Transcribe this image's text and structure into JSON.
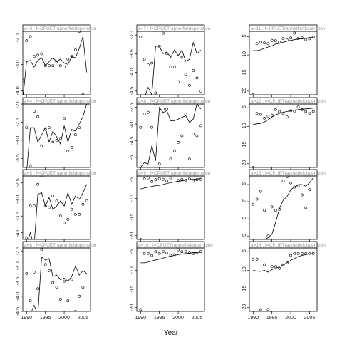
{
  "figure": {
    "xlabel": "Year"
  },
  "x_ticks": [
    1990,
    1995,
    2000,
    2005
  ],
  "chart_data": [
    {
      "type": "line",
      "panel": "a=3",
      "label": "a=3 : f=CPUETrapnetfieldoperation",
      "xlim": [
        1989,
        2007
      ],
      "ylim": [
        -4.15,
        -1.75
      ],
      "y_ticks": [
        -2.0,
        -3.0,
        -4.0
      ],
      "x": [
        1989,
        1990,
        1991,
        1992,
        1993,
        1994,
        1995,
        1996,
        1997,
        1998,
        1999,
        2000,
        2001,
        2002,
        2003,
        2004,
        2005,
        2006
      ],
      "fitted": [
        -4.3,
        -2.9,
        -2.85,
        -3.1,
        -2.85,
        -2.75,
        -3.05,
        -2.9,
        -2.75,
        -2.9,
        -2.8,
        -2.95,
        -3.0,
        -2.7,
        -2.75,
        -2.4,
        -1.95,
        -3.3
      ],
      "observed": [
        -3.6,
        -2.1,
        -1.95,
        -2.7,
        -2.65,
        -2.6,
        -3.05,
        -3.05,
        -3.05,
        -2.9,
        -3.05,
        -3.1,
        -2.8,
        -2.7,
        -2.45,
        -1.75,
        -4.15,
        null
      ]
    },
    {
      "type": "line",
      "panel": "a=7",
      "label": "a=7 : f=CPUETrapnetfieldoperation",
      "xlim": [
        1989,
        2007
      ],
      "ylim": [
        -4.6,
        -2.9
      ],
      "y_ticks": [
        -3.0,
        -3.5,
        -4.0,
        -4.5
      ],
      "x": [
        1990,
        1991,
        1992,
        1993,
        1994,
        1995,
        1996,
        1997,
        1998,
        1999,
        2000,
        2001,
        2002,
        2003,
        2004,
        2005,
        2006
      ],
      "fitted": [
        -4.6,
        -4.7,
        -4.4,
        -4.6,
        -3.3,
        -3.3,
        -3.5,
        -3.45,
        -3.6,
        -3.4,
        -3.55,
        -3.4,
        -3.7,
        -3.65,
        -3.2,
        -3.5,
        -3.4
      ],
      "observed": [
        -3.05,
        -3.65,
        -3.8,
        -3.75,
        -4.55,
        -3.3,
        -2.95,
        -3.5,
        -3.85,
        -3.85,
        -4.25,
        -3.6,
        -4.05,
        -4.35,
        -3.95,
        -4.15,
        -4.5
      ]
    },
    {
      "type": "line",
      "panel": "a=11",
      "label": "a=11 : f=CPUETrapnetfieldoperation",
      "xlim": [
        1989,
        2007
      ],
      "ylim": [
        -21,
        -3.5
      ],
      "y_ticks": [
        -5,
        -10,
        -15,
        -20
      ],
      "x": [
        1990,
        1991,
        1992,
        1993,
        1994,
        1995,
        1996,
        1997,
        1998,
        1999,
        2000,
        2001,
        2002,
        2003,
        2004,
        2005,
        2006
      ],
      "fitted": [
        -8.8,
        -8.8,
        -8.6,
        -8.2,
        -7.8,
        -7.5,
        -7.0,
        -6.8,
        -6.5,
        -6.2,
        -6.0,
        -5.8,
        -5.6,
        -5.5,
        -5.4,
        -5.2,
        -5.1
      ],
      "observed": [
        -21.0,
        -6.9,
        -6.5,
        -6.7,
        -6.9,
        -6.0,
        -6.1,
        -6.5,
        -5.5,
        -5.9,
        -5.3,
        -4.0,
        -5.5,
        -5.3,
        -5.8,
        -5.5,
        -5.0
      ]
    },
    {
      "type": "line",
      "panel": "a=4",
      "label": "a=4 : f=CPUETrapnetfieldoperation",
      "xlim": [
        1989,
        2007
      ],
      "ylim": [
        -3.75,
        -2.0
      ],
      "y_ticks": [
        -2.0,
        -2.5,
        -3.0,
        -3.5
      ],
      "x": [
        1990,
        1991,
        1992,
        1993,
        1994,
        1995,
        1996,
        1997,
        1998,
        1999,
        2000,
        2001,
        2002,
        2003,
        2004,
        2005,
        2006
      ],
      "fitted": [
        -3.9,
        -2.65,
        -2.65,
        -3.05,
        -2.85,
        -2.65,
        -3.05,
        -2.75,
        -2.9,
        -3.1,
        -2.6,
        -3.05,
        -2.7,
        -2.75,
        -2.55,
        -2.35,
        -2.0
      ],
      "observed": [
        -2.65,
        -3.7,
        -2.2,
        -2.35,
        -3.15,
        -2.7,
        -2.65,
        -3.05,
        -3.0,
        -2.95,
        -2.4,
        -3.3,
        -3.2,
        -2.85,
        -2.65,
        null,
        null
      ]
    },
    {
      "type": "line",
      "panel": "a=8",
      "label": "a=8 : f=CPUETrapnetfieldoperation",
      "xlim": [
        1989,
        2007
      ],
      "ylim": [
        -5.3,
        -3.4
      ],
      "y_ticks": [
        -3.5,
        -4.0,
        -4.5,
        -5.0
      ],
      "x": [
        1990,
        1991,
        1992,
        1993,
        1994,
        1995,
        1996,
        1997,
        1998,
        1999,
        2000,
        2001,
        2002,
        2003,
        2004,
        2005,
        2006
      ],
      "fitted": [
        -5.3,
        -5.15,
        -5.2,
        -4.65,
        -5.1,
        -3.5,
        -3.65,
        -3.6,
        -3.9,
        -3.9,
        -3.85,
        -3.8,
        -3.75,
        -3.95,
        -3.85,
        -3.4,
        -3.55
      ],
      "observed": [
        -4.1,
        -3.7,
        -3.65,
        -4.1,
        -3.4,
        -5.2,
        -3.55,
        -3.55,
        -5.05,
        -4.8,
        -4.55,
        -4.35,
        -3.7,
        -5.05,
        -4.3,
        -4.35,
        -4.05
      ]
    },
    {
      "type": "line",
      "panel": "a=12",
      "label": "a=12 : f=CPUETrapnetfieldoperation",
      "xlim": [
        1989,
        2007
      ],
      "ylim": [
        -21,
        -4.0
      ],
      "y_ticks": [
        -5,
        -10,
        -15,
        -20
      ],
      "x": [
        1990,
        1991,
        1992,
        1993,
        1994,
        1995,
        1996,
        1997,
        1998,
        1999,
        2000,
        2001,
        2002,
        2003,
        2004,
        2005,
        2006
      ],
      "fitted": [
        -9.5,
        -9.3,
        -9.2,
        -8.8,
        -8.2,
        -7.5,
        -6.9,
        -6.5,
        -6.2,
        -6.0,
        -5.8,
        -5.6,
        -5.5,
        -5.4,
        -5.3,
        -5.2,
        -5.1
      ],
      "observed": [
        -21.0,
        -6.5,
        -6.8,
        -7.8,
        -7.2,
        -7.0,
        -5.5,
        -6.0,
        -6.5,
        -7.5,
        -5.8,
        -5.9,
        -4.8,
        -5.5,
        -6.0,
        -6.5,
        -6.0
      ]
    },
    {
      "type": "line",
      "panel": "a=5",
      "label": "a=5 : f=CPUETrapnetfieldoperation",
      "xlim": [
        1989,
        2007
      ],
      "ylim": [
        -4.2,
        -2.3
      ],
      "y_ticks": [
        -2.5,
        -3.0,
        -3.5,
        -4.0
      ],
      "x": [
        1990,
        1991,
        1992,
        1993,
        1994,
        1995,
        1996,
        1997,
        1998,
        1999,
        2000,
        2001,
        2002,
        2003,
        2004,
        2005,
        2006
      ],
      "fitted": [
        -4.35,
        -4.0,
        -4.4,
        -2.85,
        -2.8,
        -3.2,
        -2.95,
        -3.3,
        -3.2,
        -3.05,
        -3.2,
        -2.8,
        -3.15,
        -2.9,
        -3.0,
        -2.8,
        -2.55
      ],
      "observed": [
        -4.15,
        -3.2,
        -3.2,
        -2.55,
        -2.3,
        -3.2,
        -3.25,
        -2.9,
        -3.05,
        -3.5,
        -3.7,
        -3.6,
        -3.3,
        -3.45,
        -3.45,
        -3.15,
        -3.05
      ]
    },
    {
      "type": "line",
      "panel": "a=9",
      "label": "a=9 : f=CPUETrapnetfieldoperation",
      "xlim": [
        1989,
        2007
      ],
      "ylim": [
        -21,
        -4.0
      ],
      "y_ticks": [
        -5,
        -10,
        -15,
        -20
      ],
      "x": [
        1990,
        1991,
        1992,
        1993,
        1994,
        1995,
        1996,
        1997,
        1998,
        1999,
        2000,
        2001,
        2002,
        2003,
        2004,
        2005,
        2006
      ],
      "fitted": [
        -7.5,
        -7.2,
        -7.0,
        -6.8,
        -6.6,
        -6.5,
        -6.3,
        -6.0,
        -5.8,
        -5.6,
        -5.4,
        -5.3,
        -5.1,
        -5.0,
        -4.9,
        -4.8,
        -4.7
      ],
      "observed": [
        -21.0,
        -4.8,
        -4.5,
        -5.5,
        -5.0,
        -4.7,
        -4.9,
        -5.3,
        -4.5,
        -3.5,
        -5.2,
        -4.9,
        -5.1,
        -4.8,
        -5.4,
        -5.0,
        -4.9
      ]
    },
    {
      "type": "line",
      "panel": "a=13",
      "label": "a=13 : f=CPUETrapnetfieldoperation",
      "xlim": [
        1989,
        2007
      ],
      "ylim": [
        -9.2,
        -5.5
      ],
      "y_ticks": [
        -6.0,
        -7.0,
        -8.0,
        -9.0
      ],
      "x": [
        1990,
        1991,
        1992,
        1993,
        1994,
        1995,
        1996,
        1997,
        1998,
        1999,
        2000,
        2001,
        2002,
        2003,
        2004,
        2005,
        2006
      ],
      "fitted": [
        -9.9,
        -9.5,
        -9.5,
        -9.2,
        -9.1,
        -8.9,
        -8.2,
        -7.4,
        -6.9,
        -6.7,
        -6.3,
        -6.15,
        -6.0,
        -6.0,
        -6.1,
        -5.9,
        -5.6
      ],
      "observed": [
        -7.15,
        -6.85,
        -6.4,
        -7.5,
        -9.0,
        -7.3,
        -7.5,
        -7.45,
        -5.8,
        -5.55,
        -5.9,
        -6.15,
        -6.1,
        -6.6,
        -7.35,
        -6.3,
        null
      ]
    },
    {
      "type": "line",
      "panel": "a=6",
      "label": "a=6 : f=CPUETrapnetfieldoperation",
      "xlim": [
        1989,
        2007
      ],
      "ylim": [
        -4.5,
        -2.4
      ],
      "y_ticks": [
        -2.5,
        -3.0,
        -3.5,
        -4.0,
        -4.5
      ],
      "x": [
        1990,
        1991,
        1992,
        1993,
        1994,
        1995,
        1996,
        1997,
        1998,
        1999,
        2000,
        2001,
        2002,
        2003,
        2004,
        2005,
        2006
      ],
      "fitted": [
        -4.6,
        -4.6,
        -4.3,
        -4.6,
        -2.7,
        -2.8,
        -2.75,
        -3.35,
        -3.3,
        -3.45,
        -3.4,
        -3.5,
        -3.35,
        -3.0,
        -3.3,
        -3.15,
        -3.25
      ],
      "observed": [
        -3.25,
        -4.15,
        -3.2,
        -3.75,
        -2.45,
        -2.95,
        -3.15,
        -3.55,
        -3.7,
        -4.1,
        -3.5,
        -4.15,
        -3.45,
        -4.5,
        -4.0,
        -3.7,
        null
      ]
    },
    {
      "type": "line",
      "panel": "a=10",
      "label": "a=10 : f=CPUETrapnetfieldoperation",
      "xlim": [
        1989,
        2007
      ],
      "ylim": [
        -21,
        -4.0
      ],
      "y_ticks": [
        -5,
        -10,
        -15,
        -20
      ],
      "x": [
        1990,
        1991,
        1992,
        1993,
        1994,
        1995,
        1996,
        1997,
        1998,
        1999,
        2000,
        2001,
        2002,
        2003,
        2004,
        2005,
        2006
      ],
      "fitted": [
        -8.0,
        -8.0,
        -7.8,
        -7.5,
        -7.2,
        -7.0,
        -6.7,
        -6.4,
        -6.2,
        -6.0,
        -5.8,
        -5.6,
        -5.5,
        -5.4,
        -5.3,
        -5.2,
        -5.1
      ],
      "observed": [
        -20.5,
        -5.5,
        -5.5,
        -6.0,
        -5.0,
        -5.5,
        -5.0,
        -5.3,
        -6.0,
        -5.8,
        -4.5,
        -5.0,
        -5.0,
        -5.2,
        -5.5,
        -5.3,
        -5.0
      ]
    },
    {
      "type": "line",
      "panel": "a=14",
      "label": "a=14 : f=CPUETrapnetfieldoperation",
      "xlim": [
        1989,
        2007
      ],
      "ylim": [
        -21,
        -4.0
      ],
      "y_ticks": [
        -5,
        -10,
        -15,
        -20
      ],
      "x": [
        1990,
        1991,
        1992,
        1993,
        1994,
        1995,
        1996,
        1997,
        1998,
        1999,
        2000,
        2001,
        2002,
        2003,
        2004,
        2005,
        2006
      ],
      "fitted": [
        -10.0,
        -10.2,
        -10.3,
        -10.0,
        -10.5,
        -9.8,
        -9.5,
        -9.0,
        -8.5,
        -8.0,
        -7.3,
        -6.8,
        -6.3,
        -6.0,
        -5.8,
        -5.6,
        -5.5
      ],
      "observed": [
        -7.0,
        -7.0,
        -20.5,
        -8.5,
        -20.5,
        -9.0,
        -9.0,
        -9.5,
        -8.5,
        -8.0,
        -6.0,
        -5.5,
        -5.5,
        -5.5,
        -5.5,
        -5.5,
        -5.5
      ]
    }
  ]
}
